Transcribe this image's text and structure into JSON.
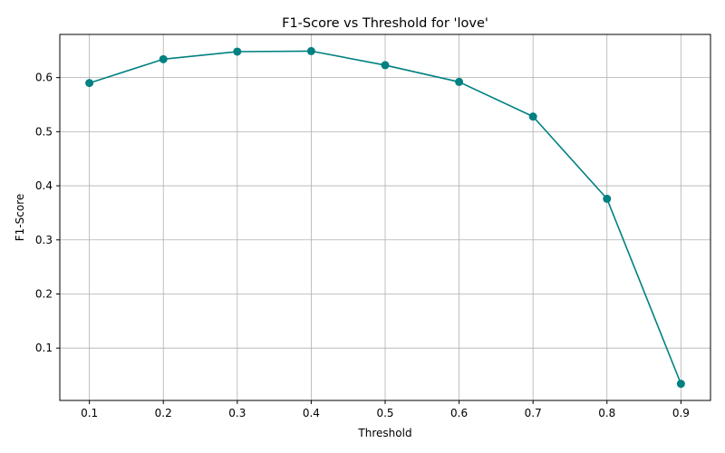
{
  "chart_data": {
    "type": "line",
    "title": "F1-Score vs Threshold for 'love'",
    "xlabel": "Threshold",
    "ylabel": "F1-Score",
    "x": [
      0.1,
      0.2,
      0.3,
      0.4,
      0.5,
      0.6,
      0.7,
      0.8,
      0.9
    ],
    "series": [
      {
        "values": [
          0.59,
          0.634,
          0.648,
          0.649,
          0.623,
          0.592,
          0.528,
          0.376,
          0.034
        ],
        "color": "#008080",
        "marker": "circle"
      }
    ],
    "xticks": [
      0.1,
      0.2,
      0.3,
      0.4,
      0.5,
      0.6,
      0.7,
      0.8,
      0.9
    ],
    "xtick_labels": [
      "0.1",
      "0.2",
      "0.3",
      "0.4",
      "0.5",
      "0.6",
      "0.7",
      "0.8",
      "0.9"
    ],
    "yticks": [
      0.1,
      0.2,
      0.3,
      0.4,
      0.5,
      0.6
    ],
    "ytick_labels": [
      "0.1",
      "0.2",
      "0.3",
      "0.4",
      "0.5",
      "0.6"
    ],
    "xlim": [
      0.06,
      0.94
    ],
    "ylim": [
      0.0032,
      0.6798
    ],
    "grid": true,
    "legend": false
  }
}
